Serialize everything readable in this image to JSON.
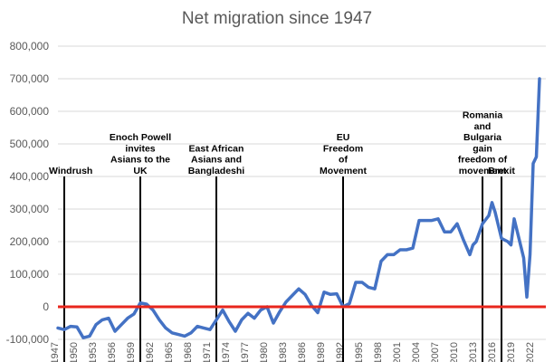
{
  "chart_data": {
    "type": "line",
    "title": "Net migration since 1947",
    "xlabel": "",
    "ylabel": "",
    "ylim": [
      -100000,
      800000
    ],
    "xlim": [
      1947,
      2024
    ],
    "yticks": [
      -100000,
      0,
      100000,
      200000,
      300000,
      400000,
      500000,
      600000,
      700000,
      800000
    ],
    "ytick_labels": [
      "-100,000",
      "0",
      "100,000",
      "200,000",
      "300,000",
      "400,000",
      "500,000",
      "600,000",
      "700,000",
      "800,000"
    ],
    "xticks": [
      1947,
      1950,
      1953,
      1956,
      1959,
      1962,
      1965,
      1968,
      1971,
      1974,
      1977,
      1980,
      1983,
      1986,
      1989,
      1992,
      1995,
      1998,
      2001,
      2004,
      2007,
      2010,
      2013,
      2016,
      2019,
      2022
    ],
    "xtick_labels": [
      "1947",
      "1950",
      "1953",
      "1956",
      "1959",
      "1962",
      "1965",
      "1968",
      "1971",
      "1974",
      "1977",
      "1980",
      "1983",
      "1986",
      "1989",
      "1992",
      "1995",
      "1998",
      "2001",
      "2004",
      "2007",
      "2010",
      "2013",
      "2016",
      "2019",
      "2022"
    ],
    "grid": true,
    "zero_line_color": "#e8261c",
    "series": [
      {
        "name": "Net migration",
        "color": "#4472c4",
        "x": [
          1947,
          1948,
          1949,
          1950,
          1951,
          1952,
          1953,
          1954,
          1955,
          1956,
          1957,
          1958,
          1959,
          1960,
          1961,
          1962,
          1963,
          1964,
          1965,
          1966,
          1967,
          1968,
          1969,
          1970,
          1971,
          1972,
          1973,
          1974,
          1975,
          1976,
          1977,
          1978,
          1979,
          1980,
          1981,
          1982,
          1983,
          1984,
          1985,
          1986,
          1987,
          1988,
          1989,
          1990,
          1991,
          1992,
          1993,
          1994,
          1995,
          1996,
          1997,
          1998,
          1999,
          2000,
          2001,
          2002,
          2003,
          2004,
          2005,
          2006,
          2007,
          2008,
          2009,
          2010,
          2011,
          2012,
          2012.5,
          2013,
          2014,
          2015,
          2015.5,
          2016,
          2016.5,
          2017,
          2018,
          2018.5,
          2019,
          2020,
          2020.5,
          2021,
          2021.5,
          2022,
          2022.5,
          2023
        ],
        "values": [
          -65000,
          -70000,
          -60000,
          -62000,
          -95000,
          -90000,
          -55000,
          -40000,
          -35000,
          -75000,
          -55000,
          -35000,
          -22000,
          12000,
          8000,
          -10000,
          -40000,
          -65000,
          -80000,
          -85000,
          -90000,
          -80000,
          -60000,
          -65000,
          -70000,
          -40000,
          -10000,
          -45000,
          -75000,
          -40000,
          -20000,
          -35000,
          -10000,
          0,
          -50000,
          -15000,
          15000,
          35000,
          55000,
          38000,
          5000,
          -18000,
          45000,
          38000,
          40000,
          0,
          10000,
          75000,
          75000,
          60000,
          55000,
          140000,
          160000,
          160000,
          175000,
          175000,
          180000,
          265000,
          265000,
          265000,
          270000,
          230000,
          230000,
          255000,
          205000,
          160000,
          190000,
          200000,
          255000,
          280000,
          320000,
          290000,
          250000,
          210000,
          200000,
          190000,
          270000,
          190000,
          150000,
          30000,
          160000,
          440000,
          460000,
          700000
        ]
      }
    ],
    "annotations": [
      {
        "year": 1948,
        "lines": [
          "Windrush"
        ]
      },
      {
        "year": 1960,
        "lines": [
          "Enoch Powell",
          "invites",
          "Asians to the",
          "UK"
        ]
      },
      {
        "year": 1972,
        "lines": [
          "East African",
          "Asians and",
          "Bangladeshi"
        ]
      },
      {
        "year": 1992,
        "lines": [
          "EU",
          "Freedom",
          "of",
          "Movement"
        ]
      },
      {
        "year": 2014,
        "lines": [
          "Romania",
          "and",
          "Bulgaria",
          "gain",
          "freedom of",
          "movement"
        ]
      },
      {
        "year": 2017,
        "lines": [
          "Brexit"
        ]
      }
    ]
  }
}
